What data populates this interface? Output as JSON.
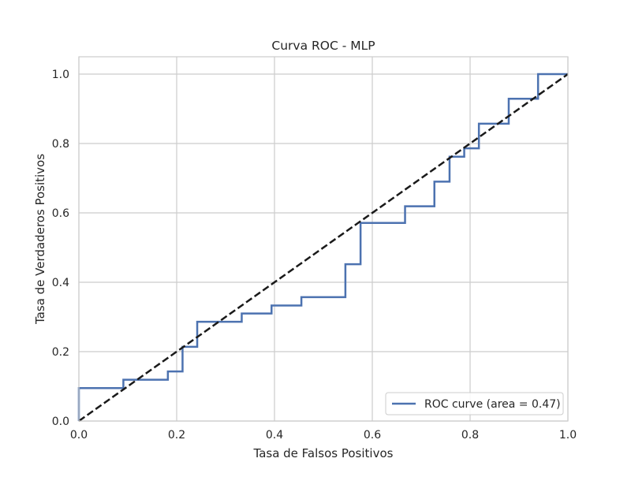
{
  "chart_data": {
    "type": "line",
    "title": "Curva ROC - MLP",
    "xlabel": "Tasa de Falsos Positivos",
    "ylabel": "Tasa de Verdaderos Positivos",
    "xlim": [
      0.0,
      1.0
    ],
    "ylim": [
      0.0,
      1.05
    ],
    "grid": true,
    "legend_position": "lower right",
    "xticks": [
      "0.0",
      "0.2",
      "0.4",
      "0.6",
      "0.8",
      "1.0"
    ],
    "yticks": [
      "0.0",
      "0.2",
      "0.4",
      "0.6",
      "0.8",
      "1.0"
    ],
    "series": [
      {
        "name": "ROC curve (area = 0.47)",
        "color": "#4c72b0",
        "style": "solid",
        "x": [
          0.0,
          0.0,
          0.091,
          0.091,
          0.182,
          0.182,
          0.212,
          0.212,
          0.242,
          0.242,
          0.333,
          0.333,
          0.394,
          0.394,
          0.455,
          0.455,
          0.545,
          0.545,
          0.576,
          0.576,
          0.667,
          0.667,
          0.727,
          0.727,
          0.758,
          0.758,
          0.788,
          0.788,
          0.818,
          0.818,
          0.879,
          0.879,
          0.939,
          0.939,
          1.0
        ],
        "y": [
          0.0,
          0.095,
          0.095,
          0.119,
          0.119,
          0.143,
          0.143,
          0.214,
          0.214,
          0.286,
          0.286,
          0.31,
          0.31,
          0.333,
          0.333,
          0.357,
          0.357,
          0.452,
          0.452,
          0.571,
          0.571,
          0.619,
          0.619,
          0.69,
          0.69,
          0.762,
          0.762,
          0.786,
          0.786,
          0.857,
          0.857,
          0.929,
          0.929,
          1.0,
          1.0
        ]
      },
      {
        "color": "#1a1a1a",
        "style": "dashed",
        "x": [
          0.0,
          1.0
        ],
        "y": [
          0.0,
          1.0
        ]
      }
    ]
  }
}
